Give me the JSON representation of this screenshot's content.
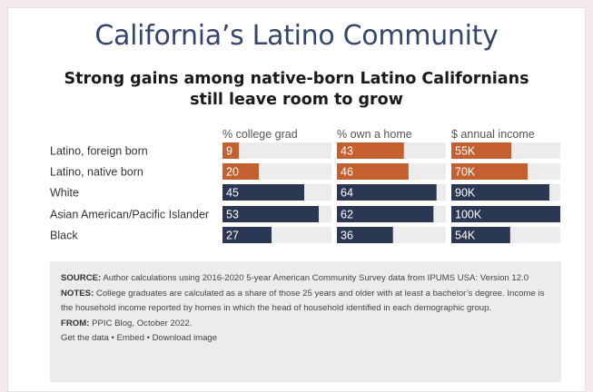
{
  "title": "California’s Latino Community",
  "subtitle_line1": "Strong gains among native-born Latino Californians",
  "subtitle_line2": "still leave room to grow",
  "colors": {
    "title": "#34476a",
    "latino_bar": "#c4602f",
    "other_bar": "#2b3854",
    "track": "#ececec"
  },
  "chart_data": {
    "type": "bar",
    "categories": [
      "Latino, foreign born",
      "Latino, native born",
      "White",
      "Asian American/Pacific Islander",
      "Black"
    ],
    "series": [
      {
        "name": "% college grad",
        "values": [
          9,
          20,
          45,
          53,
          27
        ],
        "labels": [
          "9",
          "20",
          "45",
          "53",
          "27"
        ],
        "max": 60
      },
      {
        "name": "% own a home",
        "values": [
          43,
          46,
          64,
          62,
          36
        ],
        "labels": [
          "43",
          "46",
          "64",
          "62",
          "36"
        ],
        "max": 70
      },
      {
        "name": "$ annual income",
        "values": [
          55000,
          70000,
          90000,
          100000,
          54000
        ],
        "labels": [
          "55K",
          "70K",
          "90K",
          "100K",
          "54K"
        ],
        "max": 100000
      }
    ],
    "highlight_categories": [
      "Latino, foreign born",
      "Latino, native born"
    ]
  },
  "notes": {
    "source_label": "SOURCE:",
    "source_text": " Author calculations using 2016-2020 5-year American Community Survey data from IPUMS USA: Version 12.0",
    "notes_label": "NOTES:",
    "notes_text": " College graduates are calculated as a share of those 25 years and older with at least a bachelor’s degree. Income is the household income reported by homes in which the head of household identified in each demographic group.",
    "from_label": "FROM:",
    "from_text": " PPIC Blog, October 2022.",
    "link_data": "Get the data",
    "link_embed": "Embed",
    "link_download": "Download image",
    "separator": " • "
  }
}
